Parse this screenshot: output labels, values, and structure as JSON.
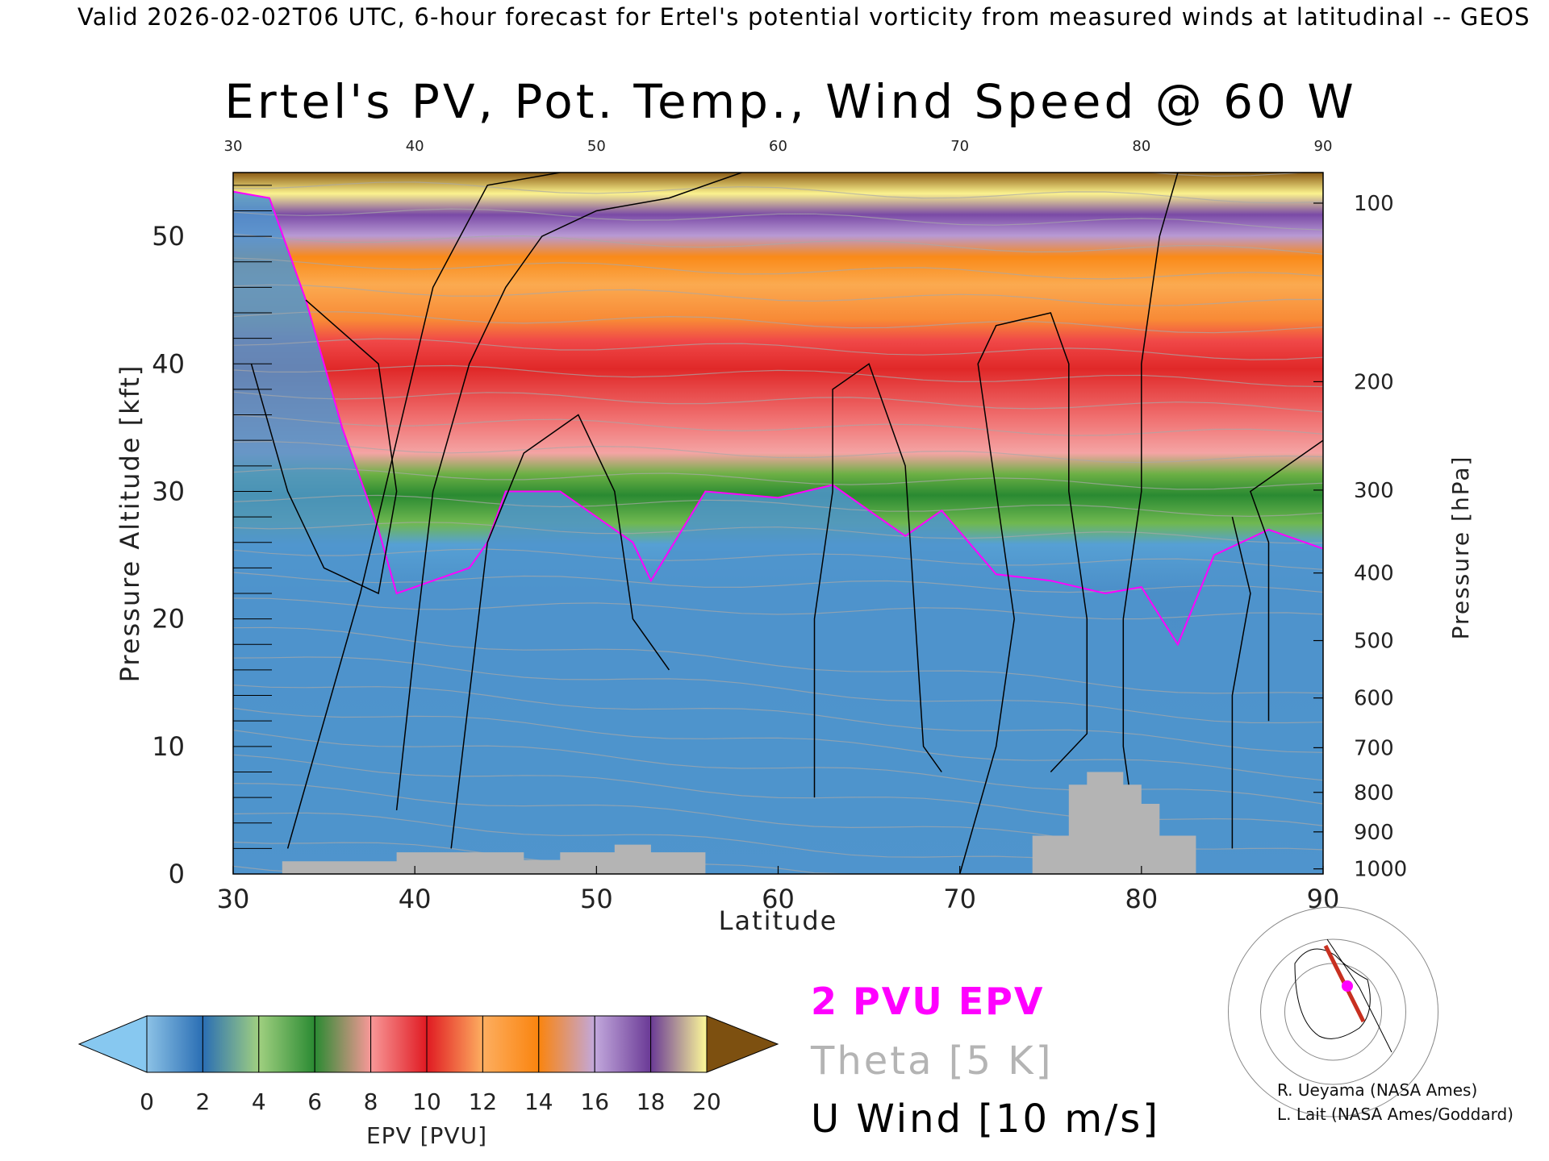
{
  "header": "Valid 2026-02-02T06 UTC, 6-hour forecast for Ertel's potential vorticity from measured winds at latitudinal -- GEOS",
  "title": "Ertel's PV, Pot. Temp., Wind Speed @ 60 W",
  "chart_data": {
    "type": "heatmap",
    "xlabel": "Latitude",
    "ylabel": "Pressure Altitude [kft]",
    "y2label": "Pressure [hPa]",
    "xlim": [
      30,
      90
    ],
    "ylim": [
      0,
      55
    ],
    "x_ticks": [
      "30",
      "40",
      "50",
      "60",
      "70",
      "80",
      "90"
    ],
    "y_ticks": [
      "0",
      "10",
      "20",
      "30",
      "40",
      "50"
    ],
    "pressure_ticks": [
      {
        "label": "100",
        "kft": 52.6
      },
      {
        "label": "200",
        "kft": 38.6
      },
      {
        "label": "300",
        "kft": 30.1
      },
      {
        "label": "400",
        "kft": 23.6
      },
      {
        "label": "500",
        "kft": 18.3
      },
      {
        "label": "600",
        "kft": 13.8
      },
      {
        "label": "700",
        "kft": 9.9
      },
      {
        "label": "800",
        "kft": 6.4
      },
      {
        "label": "900",
        "kft": 3.3
      },
      {
        "label": "1000",
        "kft": 0.4
      }
    ],
    "pv_2pvu_height_kft": [
      {
        "lat": 30,
        "kft": 53.5
      },
      {
        "lat": 32,
        "kft": 53
      },
      {
        "lat": 34,
        "kft": 45
      },
      {
        "lat": 36,
        "kft": 35
      },
      {
        "lat": 38,
        "kft": 27
      },
      {
        "lat": 39,
        "kft": 22
      },
      {
        "lat": 41,
        "kft": 23
      },
      {
        "lat": 43,
        "kft": 24
      },
      {
        "lat": 44,
        "kft": 26
      },
      {
        "lat": 45,
        "kft": 30
      },
      {
        "lat": 48,
        "kft": 30
      },
      {
        "lat": 52,
        "kft": 26
      },
      {
        "lat": 53,
        "kft": 23
      },
      {
        "lat": 56,
        "kft": 30
      },
      {
        "lat": 60,
        "kft": 29.5
      },
      {
        "lat": 63,
        "kft": 30.5
      },
      {
        "lat": 66,
        "kft": 27.5
      },
      {
        "lat": 67,
        "kft": 26.5
      },
      {
        "lat": 69,
        "kft": 28.5
      },
      {
        "lat": 72,
        "kft": 23.5
      },
      {
        "lat": 75,
        "kft": 23
      },
      {
        "lat": 78,
        "kft": 22
      },
      {
        "lat": 80,
        "kft": 22.5
      },
      {
        "lat": 82,
        "kft": 18
      },
      {
        "lat": 84,
        "kft": 25
      },
      {
        "lat": 87,
        "kft": 27
      },
      {
        "lat": 90,
        "kft": 25.5
      }
    ],
    "epv_colorbar": {
      "label": "EPV [PVU]",
      "ticks": [
        "0",
        "2",
        "4",
        "6",
        "8",
        "10",
        "12",
        "14",
        "16",
        "18",
        "20"
      ],
      "below_color": "#87c8f0",
      "above_color": "#7d5010",
      "colors": [
        "#8cc2e6",
        "#2a6eb4",
        "#a0d080",
        "#2a8a32",
        "#f89898",
        "#e01a22",
        "#fdae60",
        "#fa840e",
        "#c2a8dc",
        "#6a3a96",
        "#fdfa98",
        "#986010"
      ]
    },
    "legend": [
      "2 PVU EPV",
      "Theta [5 K]",
      "U Wind [10 m/s]"
    ],
    "legend_colors": {
      "pv": "#ff00ff",
      "theta": "#b4b4b4",
      "wind": "#000000"
    }
  },
  "credits": [
    "R. Ueyama (NASA Ames)",
    "L. Lait (NASA Ames/Goddard)"
  ]
}
